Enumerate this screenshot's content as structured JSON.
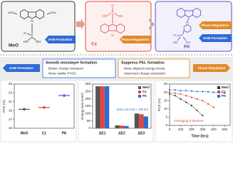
{
  "molecules": [
    {
      "name": "MeO",
      "color": "#333333",
      "atoms": [
        "O",
        "O",
        "N",
        "P",
        "O",
        "HO",
        "OH"
      ],
      "tags": [
        "SAM Formation"
      ]
    },
    {
      "name": "Cz",
      "color": "#e0473c",
      "atoms": [
        "O",
        "P",
        "HO",
        "OH",
        "N"
      ],
      "tags": [
        "Phase Regulation"
      ]
    },
    {
      "name": "PA",
      "color": "#5b4fc0",
      "atoms": [
        "N",
        "O",
        "P",
        "HO",
        "OH"
      ],
      "tags": [
        "Phase Regulation",
        "SAM Formation"
      ]
    }
  ],
  "effects": [
    {
      "tag": "SAM Formation",
      "title": "Smooth monolayer formation",
      "points": [
        "Better charge transport",
        "More stable PVSC"
      ]
    },
    {
      "tag": "Phase Regulation",
      "title": "Suppress PbI₂ formation",
      "points": [
        "More aligned energy levels",
        "Improved charge extraction"
      ]
    }
  ],
  "charts": [
    {
      "type": "dot",
      "y_label": "PCE (%)",
      "categories": [
        "MeO",
        "Cz",
        "PA"
      ],
      "values": [
        19.3,
        19.7,
        22.4
      ],
      "colors": [
        "#555555",
        "#e0473c",
        "#2f6bd6"
      ],
      "ylim": [
        15,
        25
      ],
      "yticks": [
        15,
        17,
        19,
        21,
        23,
        25
      ]
    },
    {
      "type": "bar",
      "y_label": "Energy loss (meV)",
      "categories": [
        "ΔE1",
        "ΔE2",
        "ΔE3"
      ],
      "series": [
        {
          "name": "MeO",
          "color": "#555555",
          "values": [
            285,
            20,
            100
          ]
        },
        {
          "name": "Cz",
          "color": "#e0473c",
          "values": [
            285,
            18,
            95
          ]
        },
        {
          "name": "PA",
          "color": "#2f6bd6",
          "values": [
            285,
            15,
            80
          ]
        }
      ],
      "ylim": [
        0,
        300
      ],
      "yticks": [
        0,
        50,
        100,
        150,
        200,
        250,
        300
      ],
      "annotation": "ΔVoc,non-rad < 100 mV",
      "legend": "top-right"
    },
    {
      "type": "line",
      "x_label": "Time (hrs)",
      "y_label": "PCE (%)",
      "x": [
        0,
        50,
        100,
        150,
        200,
        250,
        300,
        350,
        400,
        450,
        500
      ],
      "series": [
        {
          "name": "MeO",
          "color": "#333333",
          "values": [
            19,
            18,
            16,
            14,
            12,
            9,
            6,
            null,
            null,
            null,
            null
          ]
        },
        {
          "name": "Cz",
          "color": "#e0473c",
          "values": [
            20,
            19.5,
            19,
            18,
            17,
            16,
            15,
            13,
            11,
            null,
            null
          ]
        },
        {
          "name": "PA",
          "color": "#2f6bd6",
          "values": [
            21.5,
            21.5,
            21,
            21,
            20.8,
            20.5,
            20.5,
            20.3,
            20,
            19.8,
            19.5
          ]
        }
      ],
      "xlim": [
        0,
        550
      ],
      "xticks": [
        0,
        100,
        200,
        300,
        400,
        500
      ],
      "ylim": [
        0,
        25
      ],
      "yticks": [
        0,
        5,
        10,
        15,
        20,
        25
      ],
      "annotation": "Averaging 8 devices",
      "legend": "top-right"
    }
  ]
}
